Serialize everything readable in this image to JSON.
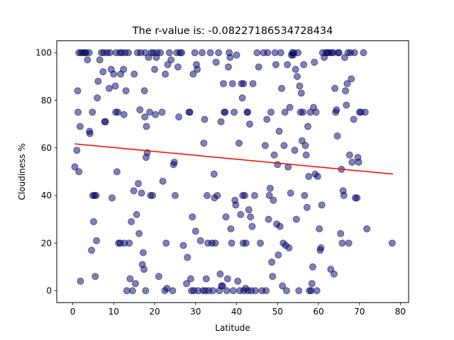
{
  "chart_data": {
    "type": "scatter",
    "title": "The r-value is: -0.08227186534728434",
    "xlabel": "Latitude",
    "ylabel": "Cloudiness %",
    "xlim": [
      -3.9,
      82.0
    ],
    "ylim": [
      -5,
      105
    ],
    "xticks": [
      "0",
      "10",
      "20",
      "30",
      "40",
      "50",
      "60",
      "70",
      "80"
    ],
    "yticks": [
      "0",
      "20",
      "40",
      "60",
      "80",
      "100"
    ],
    "grid": false,
    "legend": "none",
    "colors": {
      "points": "#00008b",
      "regression": "#ff0000",
      "axes": "#000000",
      "background": "#ffffff"
    },
    "regression": {
      "x": [
        0.5,
        78.2
      ],
      "y": [
        61.7,
        49.0
      ]
    },
    "series": [
      {
        "points": [
          [
            0.5,
            52
          ],
          [
            1.0,
            59
          ],
          [
            1.2,
            84
          ],
          [
            1.3,
            75
          ],
          [
            1.5,
            50
          ],
          [
            1.8,
            69
          ],
          [
            1.9,
            4
          ],
          [
            1.5,
            100
          ],
          [
            2.0,
            100
          ],
          [
            2.5,
            100
          ],
          [
            3.0,
            100
          ],
          [
            3.2,
            100
          ],
          [
            3.6,
            97
          ],
          [
            4.0,
            100
          ],
          [
            4.1,
            67
          ],
          [
            4.2,
            66
          ],
          [
            4.6,
            17
          ],
          [
            4.8,
            75
          ],
          [
            4.9,
            40
          ],
          [
            5.1,
            29
          ],
          [
            5.3,
            40
          ],
          [
            5.5,
            6
          ],
          [
            5.7,
            40
          ],
          [
            5.8,
            21
          ],
          [
            6.0,
            81
          ],
          [
            6.2,
            88
          ],
          [
            6.6,
            97
          ],
          [
            7.0,
            100
          ],
          [
            7.4,
            92
          ],
          [
            7.6,
            100
          ],
          [
            7.8,
            71
          ],
          [
            8.0,
            71
          ],
          [
            8.4,
            100
          ],
          [
            8.9,
            85
          ],
          [
            9.1,
            100
          ],
          [
            9.4,
            93
          ],
          [
            9.6,
            39
          ],
          [
            10.0,
            91
          ],
          [
            10.4,
            86
          ],
          [
            10.5,
            75
          ],
          [
            10.6,
            100
          ],
          [
            10.8,
            50
          ],
          [
            11.0,
            75
          ],
          [
            11.2,
            20
          ],
          [
            11.5,
            100
          ],
          [
            11.6,
            20
          ],
          [
            11.7,
            91
          ],
          [
            12.0,
            100
          ],
          [
            12.4,
            93
          ],
          [
            12.5,
            74
          ],
          [
            12.6,
            20
          ],
          [
            12.8,
            100
          ],
          [
            13.0,
            84
          ],
          [
            13.2,
            0
          ],
          [
            13.6,
            100
          ],
          [
            13.8,
            20
          ],
          [
            14.0,
            5
          ],
          [
            14.3,
            29
          ],
          [
            14.6,
            0
          ],
          [
            14.9,
            42
          ],
          [
            15.0,
            91
          ],
          [
            15.3,
            3
          ],
          [
            15.6,
            32
          ],
          [
            15.8,
            100
          ],
          [
            16.0,
            45
          ],
          [
            16.2,
            24
          ],
          [
            16.4,
            76
          ],
          [
            16.6,
            100
          ],
          [
            16.8,
            41
          ],
          [
            17.0,
            11
          ],
          [
            17.2,
            16
          ],
          [
            17.4,
            9
          ],
          [
            17.5,
            84
          ],
          [
            17.6,
            73
          ],
          [
            17.7,
            100
          ],
          [
            17.8,
            0
          ],
          [
            17.9,
            56
          ],
          [
            18.0,
            69
          ],
          [
            18.2,
            58
          ],
          [
            18.5,
            98
          ],
          [
            18.8,
            75
          ],
          [
            19.0,
            40
          ],
          [
            19.2,
            100
          ],
          [
            19.5,
            40
          ],
          [
            19.7,
            100
          ],
          [
            20.0,
            93
          ],
          [
            20.2,
            74
          ],
          [
            20.4,
            98
          ],
          [
            20.6,
            100
          ],
          [
            21.0,
            6
          ],
          [
            21.4,
            100
          ],
          [
            21.8,
            75
          ],
          [
            22.0,
            46
          ],
          [
            22.5,
            0
          ],
          [
            22.6,
            91
          ],
          [
            22.8,
            20
          ],
          [
            23.0,
            1
          ],
          [
            23.2,
            95
          ],
          [
            23.6,
            100
          ],
          [
            24.0,
            97
          ],
          [
            24.4,
            0
          ],
          [
            24.6,
            53
          ],
          [
            24.8,
            54
          ],
          [
            25.0,
            40
          ],
          [
            25.4,
            100
          ],
          [
            25.7,
            94
          ],
          [
            25.9,
            73
          ],
          [
            26.2,
            100
          ],
          [
            26.6,
            100
          ],
          [
            27.0,
            19
          ],
          [
            27.8,
            3
          ],
          [
            28.0,
            14
          ],
          [
            28.4,
            75
          ],
          [
            28.6,
            75
          ],
          [
            28.8,
            5
          ],
          [
            29.0,
            0
          ],
          [
            29.2,
            31
          ],
          [
            29.4,
            91
          ],
          [
            29.6,
            0
          ],
          [
            29.8,
            100
          ],
          [
            30.0,
            25
          ],
          [
            30.2,
            95
          ],
          [
            30.4,
            93
          ],
          [
            30.6,
            0
          ],
          [
            31.2,
            21
          ],
          [
            31.6,
            100
          ],
          [
            31.8,
            0
          ],
          [
            32.0,
            62
          ],
          [
            32.2,
            72
          ],
          [
            32.4,
            0
          ],
          [
            32.6,
            5
          ],
          [
            32.8,
            40
          ],
          [
            33.0,
            20
          ],
          [
            33.2,
            0
          ],
          [
            33.6,
            100
          ],
          [
            34.0,
            20
          ],
          [
            34.2,
            0
          ],
          [
            34.5,
            49
          ],
          [
            34.6,
            39
          ],
          [
            34.8,
            20
          ],
          [
            35.0,
            96
          ],
          [
            35.3,
            40
          ],
          [
            35.6,
            100
          ],
          [
            35.8,
            0
          ],
          [
            36.0,
            7
          ],
          [
            36.2,
            71
          ],
          [
            36.3,
            2
          ],
          [
            36.6,
            2
          ],
          [
            36.8,
            87
          ],
          [
            37.0,
            75
          ],
          [
            37.2,
            75
          ],
          [
            37.4,
            31
          ],
          [
            37.6,
            0
          ],
          [
            37.8,
            5
          ],
          [
            38.0,
            94
          ],
          [
            38.2,
            100
          ],
          [
            38.4,
            98
          ],
          [
            38.6,
            26
          ],
          [
            38.8,
            20
          ],
          [
            39.0,
            87
          ],
          [
            39.2,
            0
          ],
          [
            39.4,
            75
          ],
          [
            39.6,
            38
          ],
          [
            39.8,
            36
          ],
          [
            40.0,
            99
          ],
          [
            40.3,
            4
          ],
          [
            40.6,
            62
          ],
          [
            40.8,
            0
          ],
          [
            41.0,
            32
          ],
          [
            41.2,
            87
          ],
          [
            41.4,
            81
          ],
          [
            41.5,
            40
          ],
          [
            41.6,
            20
          ],
          [
            41.7,
            87
          ],
          [
            41.8,
            0
          ],
          [
            42.0,
            40
          ],
          [
            42.2,
            1
          ],
          [
            42.3,
            20
          ],
          [
            42.6,
            75
          ],
          [
            42.7,
            75
          ],
          [
            42.8,
            0
          ],
          [
            43.0,
            34
          ],
          [
            43.2,
            70
          ],
          [
            43.4,
            31
          ],
          [
            43.6,
            0
          ],
          [
            43.8,
            27
          ],
          [
            44.0,
            87
          ],
          [
            44.4,
            40
          ],
          [
            44.6,
            0
          ],
          [
            45.0,
            100
          ],
          [
            45.4,
            94
          ],
          [
            45.8,
            20
          ],
          [
            46.2,
            0
          ],
          [
            46.6,
            100
          ],
          [
            47.0,
            61
          ],
          [
            47.2,
            0
          ],
          [
            47.4,
            72
          ],
          [
            47.6,
            100
          ],
          [
            47.8,
            30
          ],
          [
            48.0,
            40
          ],
          [
            48.2,
            43
          ],
          [
            48.4,
            75
          ],
          [
            48.6,
            12
          ],
          [
            48.8,
            6
          ],
          [
            49.0,
            38
          ],
          [
            49.2,
            57
          ],
          [
            49.4,
            100
          ],
          [
            49.6,
            95
          ],
          [
            49.8,
            28
          ],
          [
            50.0,
            53
          ],
          [
            50.2,
            15
          ],
          [
            50.4,
            67
          ],
          [
            50.6,
            27
          ],
          [
            50.8,
            100
          ],
          [
            51.0,
            85
          ],
          [
            51.2,
            2
          ],
          [
            51.4,
            20
          ],
          [
            51.6,
            61
          ],
          [
            51.8,
            75
          ],
          [
            52.0,
            19
          ],
          [
            52.2,
            0
          ],
          [
            52.4,
            95
          ],
          [
            52.6,
            52
          ],
          [
            52.8,
            18
          ],
          [
            53.0,
            77
          ],
          [
            53.2,
            41
          ],
          [
            53.4,
            99
          ],
          [
            53.6,
            100
          ],
          [
            53.8,
            99
          ],
          [
            54.0,
            100
          ],
          [
            54.2,
            59
          ],
          [
            54.4,
            93
          ],
          [
            54.6,
            30
          ],
          [
            54.8,
            90
          ],
          [
            55.0,
            100
          ],
          [
            55.2,
            0
          ],
          [
            55.4,
            86
          ],
          [
            55.6,
            75
          ],
          [
            55.8,
            83
          ],
          [
            56.0,
            63
          ],
          [
            56.2,
            75
          ],
          [
            56.4,
            95
          ],
          [
            56.6,
            40
          ],
          [
            56.8,
            61
          ],
          [
            57.0,
            57
          ],
          [
            57.2,
            35
          ],
          [
            57.4,
            69
          ],
          [
            57.6,
            48
          ],
          [
            57.8,
            0
          ],
          [
            58.0,
            75
          ],
          [
            58.2,
            0
          ],
          [
            58.4,
            3
          ],
          [
            58.6,
            10
          ],
          [
            58.8,
            77
          ],
          [
            59.0,
            96
          ],
          [
            59.2,
            49
          ],
          [
            59.4,
            75
          ],
          [
            59.6,
            0
          ],
          [
            59.8,
            48
          ],
          [
            60.2,
            26
          ],
          [
            60.4,
            17
          ],
          [
            60.6,
            18
          ],
          [
            60.8,
            36
          ],
          [
            61.0,
            100
          ],
          [
            61.4,
            98
          ],
          [
            61.8,
            100
          ],
          [
            62.2,
            100
          ],
          [
            62.6,
            100
          ],
          [
            63.0,
            9
          ],
          [
            63.2,
            100
          ],
          [
            63.6,
            100
          ],
          [
            63.8,
            7
          ],
          [
            64.0,
            85
          ],
          [
            64.2,
            75
          ],
          [
            64.4,
            76
          ],
          [
            64.6,
            65
          ],
          [
            64.8,
            100
          ],
          [
            65.0,
            100
          ],
          [
            65.4,
            24
          ],
          [
            65.6,
            51
          ],
          [
            65.8,
            20
          ],
          [
            66.0,
            42
          ],
          [
            66.2,
            40
          ],
          [
            66.4,
            98
          ],
          [
            66.6,
            84
          ],
          [
            66.8,
            78
          ],
          [
            67.0,
            87
          ],
          [
            67.2,
            100
          ],
          [
            67.4,
            20
          ],
          [
            67.6,
            57
          ],
          [
            67.8,
            100
          ],
          [
            68.0,
            89
          ],
          [
            68.2,
            54
          ],
          [
            68.6,
            72
          ],
          [
            68.8,
            100
          ],
          [
            69.0,
            39
          ],
          [
            69.4,
            39
          ],
          [
            69.6,
            56
          ],
          [
            69.8,
            54
          ],
          [
            70.0,
            75
          ],
          [
            70.4,
            75
          ],
          [
            71.0,
            100
          ],
          [
            71.4,
            75
          ],
          [
            71.8,
            26
          ],
          [
            78.0,
            20
          ]
        ]
      }
    ]
  }
}
